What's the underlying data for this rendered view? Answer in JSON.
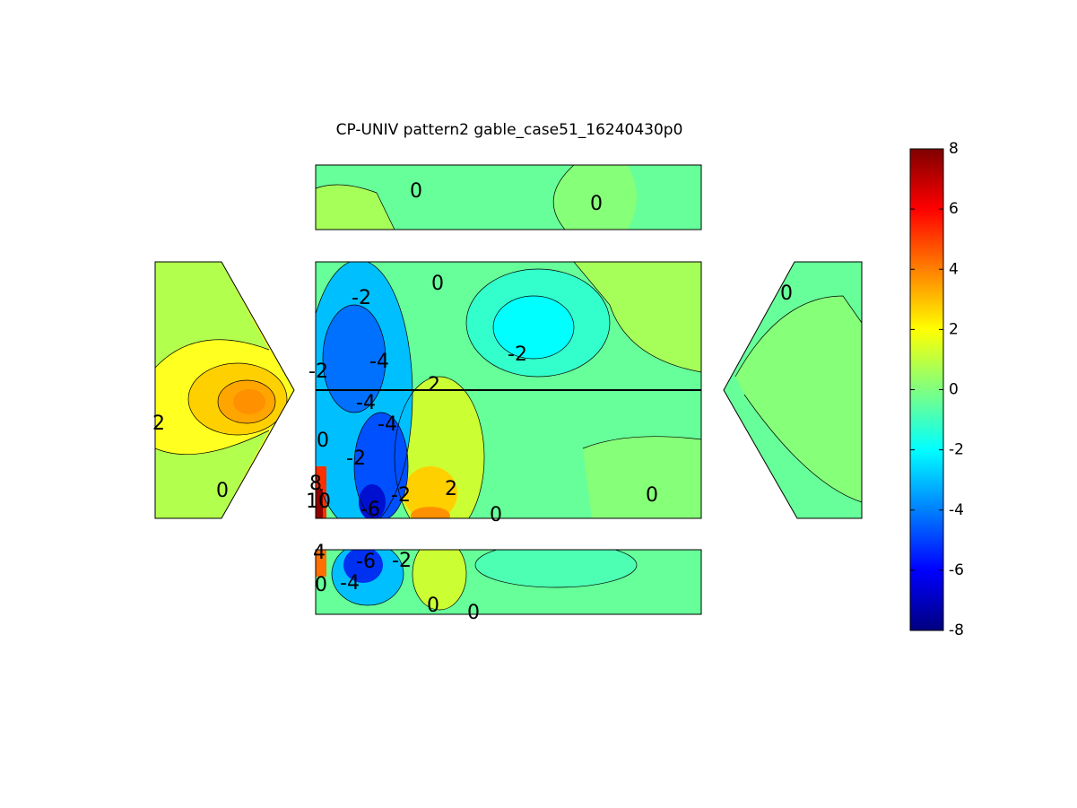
{
  "chart_data": {
    "type": "contour",
    "title": "CP-UNIV pattern2 gable_case51_16240430p0",
    "colormap": "jet",
    "clim": [
      -8,
      8
    ],
    "cticks": [
      -8,
      -6,
      -4,
      -2,
      0,
      2,
      4,
      6,
      8
    ],
    "contour_labels": [
      0,
      0,
      2,
      0,
      0,
      -2,
      -4,
      -2,
      2,
      -2,
      -4,
      -4,
      0,
      -2,
      -2,
      2,
      0,
      0,
      -6,
      10,
      8,
      0,
      4,
      -6,
      -2,
      0,
      -4,
      0,
      0
    ]
  }
}
